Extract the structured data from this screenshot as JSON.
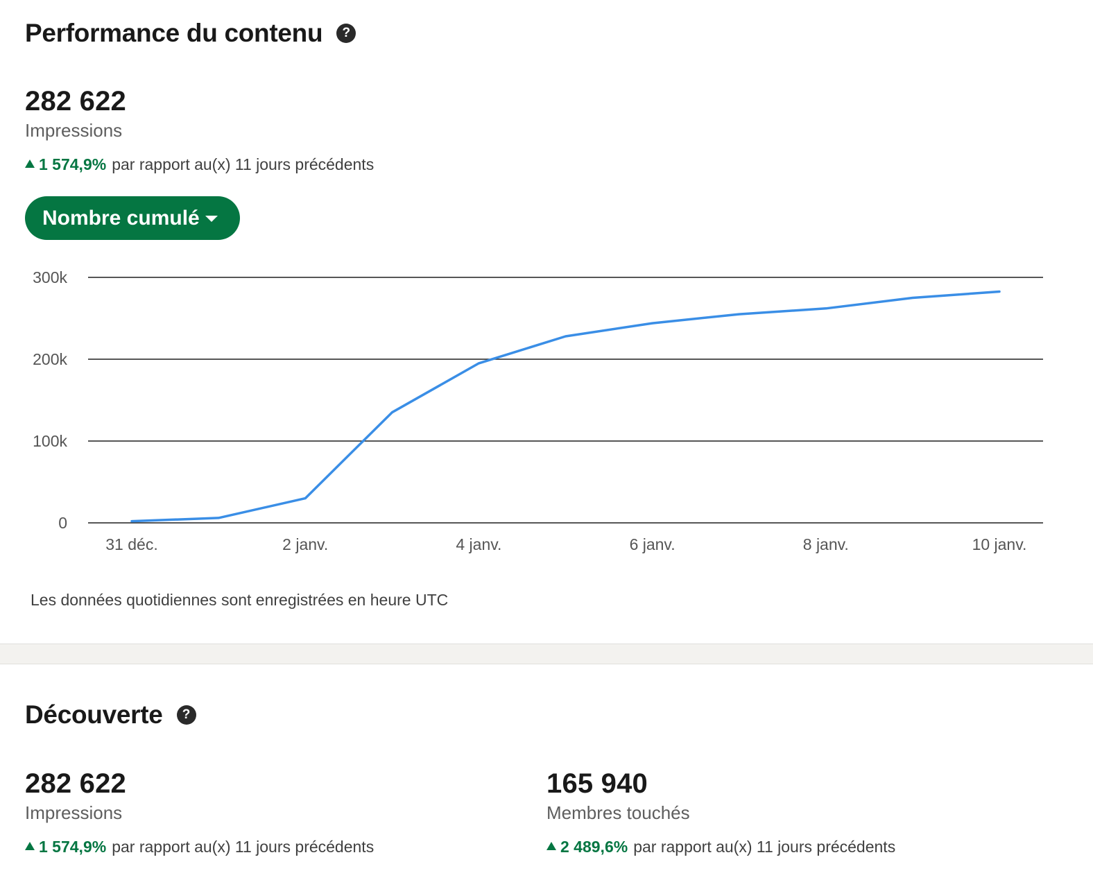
{
  "performance": {
    "title": "Performance du contenu",
    "help_icon": "question-circle-icon",
    "metric": {
      "value": "282 622",
      "label": "Impressions",
      "change_pct": "1 574,9%",
      "change_text": "par rapport au(x) 11 jours précédents"
    },
    "dropdown_label": "Nombre cumulé",
    "footnote": "Les données quotidiennes sont enregistrées en heure UTC"
  },
  "discovery": {
    "title": "Découverte",
    "help_icon": "question-circle-icon",
    "metrics": [
      {
        "value": "282 622",
        "label": "Impressions",
        "change_pct": "1 574,9%",
        "change_text": "par rapport au(x) 11 jours précédents"
      },
      {
        "value": "165 940",
        "label": "Membres touchés",
        "change_pct": "2 489,6%",
        "change_text": "par rapport au(x) 11 jours précédents"
      }
    ]
  },
  "colors": {
    "accent_green": "#057642",
    "line_blue": "#3a8ee6",
    "text_dark": "#191919"
  },
  "chart_data": {
    "type": "line",
    "x": [
      "31 déc.",
      "1 janv.",
      "2 janv.",
      "3 janv.",
      "4 janv.",
      "5 janv.",
      "6 janv.",
      "7 janv.",
      "8 janv.",
      "9 janv.",
      "10 janv."
    ],
    "x_tick_labels": [
      "31 déc.",
      "2 janv.",
      "4 janv.",
      "6 janv.",
      "8 janv.",
      "10 janv."
    ],
    "x_tick_indices": [
      0,
      2,
      4,
      6,
      8,
      10
    ],
    "series": [
      {
        "values": [
          2000,
          6000,
          30000,
          135000,
          195000,
          228000,
          244000,
          255000,
          262000,
          275000,
          282622
        ]
      }
    ],
    "y_ticks": [
      0,
      100000,
      200000,
      300000
    ],
    "y_tick_labels": [
      "0",
      "100k",
      "200k",
      "300k"
    ],
    "ylim": [
      0,
      300000
    ],
    "grid": true
  }
}
